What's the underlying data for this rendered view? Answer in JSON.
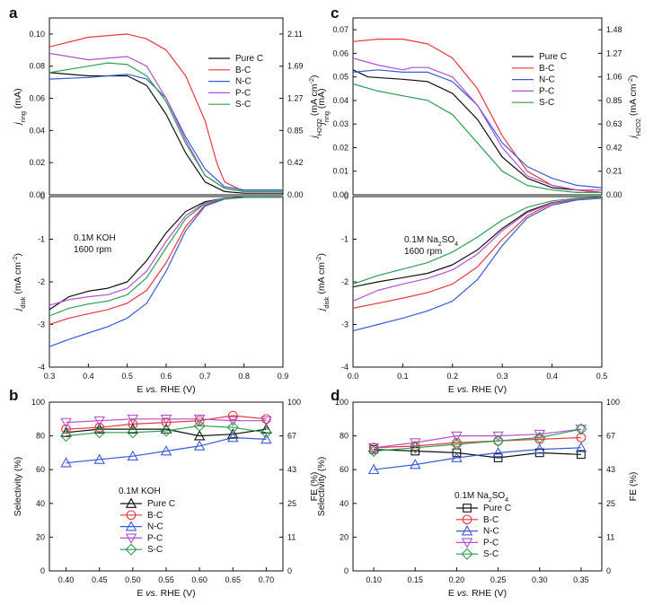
{
  "figure": {
    "panel_labels": [
      "a",
      "b",
      "c",
      "d"
    ]
  },
  "chart_data": [
    {
      "id": "a_top",
      "type": "line",
      "panel": "a",
      "xlim": [
        0.3,
        0.9
      ],
      "ylim": [
        0,
        0.11
      ],
      "yticks": [
        "0.00",
        "0.02",
        "0.04",
        "0.06",
        "0.08",
        "0.10"
      ],
      "ylabel": "j_ring (mA)",
      "right_yticks": [
        "0.00",
        "0.42",
        "0.85",
        "1.27",
        "1.69",
        "2.11"
      ],
      "right_ylabel": "j_H2O2 (mA cm^-2)",
      "legend": [
        "Pure C",
        "B-C",
        "N-C",
        "P-C",
        "S-C"
      ],
      "series": [
        {
          "name": "Pure C",
          "color": "#111111",
          "x": [
            0.3,
            0.4,
            0.5,
            0.55,
            0.6,
            0.65,
            0.7,
            0.75,
            0.8,
            0.9
          ],
          "y": [
            0.076,
            0.074,
            0.074,
            0.068,
            0.05,
            0.026,
            0.008,
            0.002,
            0.001,
            0.001
          ]
        },
        {
          "name": "B-C",
          "color": "#e8383d",
          "x": [
            0.3,
            0.4,
            0.5,
            0.55,
            0.6,
            0.65,
            0.7,
            0.73,
            0.75,
            0.8,
            0.9
          ],
          "y": [
            0.092,
            0.098,
            0.1,
            0.097,
            0.09,
            0.074,
            0.046,
            0.02,
            0.008,
            0.002,
            0.002
          ]
        },
        {
          "name": "N-C",
          "color": "#3b5bd6",
          "x": [
            0.3,
            0.4,
            0.5,
            0.55,
            0.6,
            0.65,
            0.7,
            0.75,
            0.8,
            0.9
          ],
          "y": [
            0.072,
            0.073,
            0.075,
            0.072,
            0.06,
            0.036,
            0.016,
            0.005,
            0.003,
            0.003
          ]
        },
        {
          "name": "P-C",
          "color": "#b44fd0",
          "x": [
            0.3,
            0.4,
            0.5,
            0.55,
            0.6,
            0.65,
            0.7,
            0.75,
            0.8,
            0.9
          ],
          "y": [
            0.088,
            0.084,
            0.086,
            0.08,
            0.06,
            0.034,
            0.012,
            0.004,
            0.002,
            0.002
          ]
        },
        {
          "name": "S-C",
          "color": "#2e9e52",
          "x": [
            0.3,
            0.4,
            0.45,
            0.5,
            0.55,
            0.6,
            0.65,
            0.7,
            0.75,
            0.8,
            0.9
          ],
          "y": [
            0.076,
            0.08,
            0.082,
            0.081,
            0.074,
            0.058,
            0.032,
            0.012,
            0.004,
            0.002,
            0.002
          ]
        }
      ]
    },
    {
      "id": "a_bottom",
      "type": "line",
      "panel": "a",
      "xlim": [
        0.3,
        0.9
      ],
      "ylim": [
        -4,
        0
      ],
      "xticks": [
        "0.3",
        "0.4",
        "0.5",
        "0.6",
        "0.7",
        "0.8",
        "0.9"
      ],
      "yticks": [
        "-4",
        "-3",
        "-2",
        "-1",
        "0"
      ],
      "xlabel": "E vs. RHE (V)",
      "ylabel": "j_disk (mA cm^-2)",
      "annotation": [
        "0.1M KOH",
        "1600 rpm"
      ],
      "series": [
        {
          "name": "Pure C",
          "color": "#111111",
          "x": [
            0.3,
            0.35,
            0.4,
            0.45,
            0.5,
            0.55,
            0.6,
            0.65,
            0.7,
            0.75,
            0.8,
            0.9
          ],
          "y": [
            -2.65,
            -2.35,
            -2.22,
            -2.15,
            -2.0,
            -1.5,
            -0.85,
            -0.35,
            -0.12,
            -0.04,
            -0.02,
            -0.01
          ]
        },
        {
          "name": "B-C",
          "color": "#e8383d",
          "x": [
            0.3,
            0.35,
            0.4,
            0.45,
            0.5,
            0.55,
            0.6,
            0.65,
            0.7,
            0.75,
            0.8,
            0.9
          ],
          "y": [
            -3.0,
            -2.85,
            -2.75,
            -2.65,
            -2.5,
            -2.2,
            -1.55,
            -0.7,
            -0.2,
            -0.05,
            -0.02,
            -0.01
          ]
        },
        {
          "name": "N-C",
          "color": "#3b5bd6",
          "x": [
            0.3,
            0.35,
            0.4,
            0.45,
            0.5,
            0.55,
            0.6,
            0.65,
            0.7,
            0.75,
            0.8,
            0.9
          ],
          "y": [
            -3.52,
            -3.35,
            -3.2,
            -3.05,
            -2.85,
            -2.5,
            -1.75,
            -0.8,
            -0.22,
            -0.06,
            -0.02,
            -0.01
          ]
        },
        {
          "name": "P-C",
          "color": "#b44fd0",
          "x": [
            0.3,
            0.35,
            0.4,
            0.45,
            0.5,
            0.55,
            0.6,
            0.65,
            0.7,
            0.75,
            0.8,
            0.9
          ],
          "y": [
            -2.55,
            -2.42,
            -2.35,
            -2.3,
            -2.15,
            -1.75,
            -1.05,
            -0.45,
            -0.14,
            -0.04,
            -0.02,
            -0.01
          ]
        },
        {
          "name": "S-C",
          "color": "#2e9e52",
          "x": [
            0.3,
            0.35,
            0.4,
            0.45,
            0.5,
            0.55,
            0.6,
            0.65,
            0.7,
            0.75,
            0.8,
            0.9
          ],
          "y": [
            -2.8,
            -2.62,
            -2.52,
            -2.45,
            -2.3,
            -1.9,
            -1.2,
            -0.52,
            -0.16,
            -0.05,
            -0.02,
            -0.01
          ]
        }
      ]
    },
    {
      "id": "b",
      "type": "line",
      "panel": "b",
      "xlim": [
        0.375,
        0.725
      ],
      "ylim": [
        0,
        100
      ],
      "xticks": [
        "0.40",
        "0.45",
        "0.50",
        "0.55",
        "0.60",
        "0.65",
        "0.70"
      ],
      "yticks": [
        "0",
        "20",
        "40",
        "60",
        "80",
        "100"
      ],
      "right_yticks": [
        "0",
        "11",
        "25",
        "43",
        "67",
        "100"
      ],
      "xlabel": "E vs. RHE (V)",
      "ylabel": "Selectivity (%)",
      "right_ylabel": "FE (%)",
      "legend_title": "0.1M KOH",
      "legend": [
        "Pure C",
        "B-C",
        "N-C",
        "P-C",
        "S-C"
      ],
      "series": [
        {
          "name": "Pure C",
          "marker": "triangle-up",
          "color": "#111111",
          "x": [
            0.4,
            0.45,
            0.5,
            0.55,
            0.6,
            0.65,
            0.7
          ],
          "y": [
            82,
            84,
            84,
            84,
            80,
            81,
            84
          ]
        },
        {
          "name": "B-C",
          "marker": "circle",
          "color": "#e8383d",
          "x": [
            0.4,
            0.45,
            0.5,
            0.55,
            0.6,
            0.65,
            0.7
          ],
          "y": [
            84,
            85,
            87,
            88,
            89,
            92,
            90
          ]
        },
        {
          "name": "N-C",
          "marker": "triangle-up",
          "color": "#3b5bd6",
          "x": [
            0.4,
            0.45,
            0.5,
            0.55,
            0.6,
            0.65,
            0.7
          ],
          "y": [
            64,
            66,
            68,
            71,
            74,
            79,
            78
          ]
        },
        {
          "name": "P-C",
          "marker": "triangle-down",
          "color": "#b44fd0",
          "x": [
            0.4,
            0.45,
            0.5,
            0.55,
            0.6,
            0.65,
            0.7
          ],
          "y": [
            88,
            89,
            90,
            90,
            90,
            89,
            89
          ]
        },
        {
          "name": "S-C",
          "marker": "diamond",
          "color": "#2e9e52",
          "x": [
            0.4,
            0.45,
            0.5,
            0.55,
            0.6,
            0.65,
            0.7
          ],
          "y": [
            80,
            82,
            82,
            83,
            86,
            85,
            82
          ]
        }
      ]
    },
    {
      "id": "c_top",
      "type": "line",
      "panel": "c",
      "xlim": [
        0.0,
        0.5
      ],
      "ylim": [
        0,
        0.075
      ],
      "yticks": [
        "0.00",
        "0.01",
        "0.02",
        "0.03",
        "0.04",
        "0.05",
        "0.06",
        "0.07"
      ],
      "ylabel": "j_ring (mA)",
      "right_yticks": [
        "0.00",
        "0.21",
        "0.42",
        "0.63",
        "0.85",
        "1.06",
        "1.27",
        "1.48"
      ],
      "right_ylabel": "j_H2O2 (mA cm^-2)",
      "legend": [
        "Pure C",
        "B-C",
        "N-C",
        "P-C",
        "S-C"
      ],
      "series": [
        {
          "name": "Pure C",
          "color": "#111111",
          "x": [
            0.0,
            0.03,
            0.1,
            0.15,
            0.2,
            0.25,
            0.3,
            0.35,
            0.4,
            0.45,
            0.5
          ],
          "y": [
            0.053,
            0.05,
            0.049,
            0.048,
            0.043,
            0.032,
            0.016,
            0.007,
            0.003,
            0.002,
            0.001
          ]
        },
        {
          "name": "B-C",
          "color": "#e8383d",
          "x": [
            0.0,
            0.05,
            0.1,
            0.15,
            0.2,
            0.25,
            0.3,
            0.35,
            0.4,
            0.45,
            0.5
          ],
          "y": [
            0.065,
            0.066,
            0.066,
            0.064,
            0.058,
            0.045,
            0.025,
            0.01,
            0.004,
            0.002,
            0.001
          ]
        },
        {
          "name": "N-C",
          "color": "#3b5bd6",
          "x": [
            0.0,
            0.05,
            0.1,
            0.15,
            0.2,
            0.25,
            0.3,
            0.35,
            0.4,
            0.45,
            0.5
          ],
          "y": [
            0.052,
            0.053,
            0.052,
            0.052,
            0.048,
            0.038,
            0.022,
            0.012,
            0.007,
            0.004,
            0.003
          ]
        },
        {
          "name": "P-C",
          "color": "#b44fd0",
          "x": [
            0.0,
            0.05,
            0.1,
            0.12,
            0.15,
            0.2,
            0.25,
            0.3,
            0.35,
            0.4,
            0.45,
            0.5
          ],
          "y": [
            0.058,
            0.055,
            0.053,
            0.054,
            0.054,
            0.05,
            0.038,
            0.02,
            0.008,
            0.004,
            0.002,
            0.002
          ]
        },
        {
          "name": "S-C",
          "color": "#2e9e52",
          "x": [
            0.0,
            0.05,
            0.1,
            0.15,
            0.2,
            0.25,
            0.3,
            0.35,
            0.4,
            0.45,
            0.5
          ],
          "y": [
            0.047,
            0.044,
            0.042,
            0.04,
            0.034,
            0.022,
            0.01,
            0.004,
            0.002,
            0.001,
            0.001
          ]
        }
      ]
    },
    {
      "id": "c_bottom",
      "type": "line",
      "panel": "c",
      "xlim": [
        0.0,
        0.5
      ],
      "ylim": [
        -4,
        0
      ],
      "xticks": [
        "0.0",
        "0.1",
        "0.2",
        "0.3",
        "0.4",
        "0.5"
      ],
      "yticks": [
        "-4",
        "-3",
        "-2",
        "-1",
        "0"
      ],
      "xlabel": "E vs. RHE (V)",
      "ylabel": "j_disk (mA cm^-2)",
      "annotation": [
        "0.1M Na2SO4",
        "1600 rpm"
      ],
      "series": [
        {
          "name": "Pure C",
          "color": "#111111",
          "x": [
            0.0,
            0.05,
            0.1,
            0.15,
            0.2,
            0.25,
            0.3,
            0.35,
            0.4,
            0.45,
            0.5
          ],
          "y": [
            -2.12,
            -2.0,
            -1.9,
            -1.8,
            -1.6,
            -1.25,
            -0.75,
            -0.35,
            -0.14,
            -0.06,
            -0.03
          ]
        },
        {
          "name": "B-C",
          "color": "#e8383d",
          "x": [
            0.0,
            0.05,
            0.1,
            0.15,
            0.2,
            0.25,
            0.3,
            0.35,
            0.4,
            0.45,
            0.5
          ],
          "y": [
            -2.62,
            -2.5,
            -2.38,
            -2.25,
            -2.05,
            -1.65,
            -1.0,
            -0.45,
            -0.16,
            -0.07,
            -0.03
          ]
        },
        {
          "name": "N-C",
          "color": "#3b5bd6",
          "x": [
            0.0,
            0.05,
            0.1,
            0.15,
            0.2,
            0.25,
            0.3,
            0.35,
            0.4,
            0.45,
            0.5
          ],
          "y": [
            -3.15,
            -3.0,
            -2.85,
            -2.68,
            -2.45,
            -1.95,
            -1.15,
            -0.5,
            -0.2,
            -0.08,
            -0.04
          ]
        },
        {
          "name": "P-C",
          "color": "#b44fd0",
          "x": [
            0.0,
            0.05,
            0.1,
            0.15,
            0.2,
            0.25,
            0.3,
            0.35,
            0.4,
            0.45,
            0.5
          ],
          "y": [
            -2.45,
            -2.2,
            -2.05,
            -1.92,
            -1.72,
            -1.35,
            -0.8,
            -0.38,
            -0.15,
            -0.06,
            -0.03
          ]
        },
        {
          "name": "S-C",
          "color": "#2e9e52",
          "x": [
            0.0,
            0.05,
            0.1,
            0.15,
            0.2,
            0.25,
            0.3,
            0.35,
            0.4,
            0.45,
            0.5
          ],
          "y": [
            -2.05,
            -1.85,
            -1.7,
            -1.55,
            -1.3,
            -0.95,
            -0.55,
            -0.25,
            -0.1,
            -0.04,
            -0.02
          ]
        }
      ]
    },
    {
      "id": "d",
      "type": "line",
      "panel": "d",
      "xlim": [
        0.075,
        0.375
      ],
      "ylim": [
        0,
        100
      ],
      "xticks": [
        "0.10",
        "0.15",
        "0.20",
        "0.25",
        "0.30",
        "0.35"
      ],
      "yticks": [
        "0",
        "20",
        "40",
        "60",
        "80",
        "100"
      ],
      "right_yticks": [
        "0",
        "11",
        "25",
        "43",
        "67",
        "100"
      ],
      "xlabel": "E vs. RHE (V)",
      "ylabel": "Selectivity (%)",
      "right_ylabel": "FE (%)",
      "legend_title": "0.1M Na2SO4",
      "legend": [
        "Pure C",
        "B-C",
        "N-C",
        "P-C",
        "S-C"
      ],
      "series": [
        {
          "name": "Pure C",
          "marker": "square",
          "color": "#111111",
          "x": [
            0.1,
            0.15,
            0.2,
            0.25,
            0.3,
            0.35
          ],
          "y": [
            72,
            71,
            70,
            67,
            70,
            69
          ]
        },
        {
          "name": "B-C",
          "marker": "circle",
          "color": "#e8383d",
          "x": [
            0.1,
            0.15,
            0.2,
            0.25,
            0.3,
            0.35
          ],
          "y": [
            73,
            74,
            76,
            77,
            78,
            79
          ]
        },
        {
          "name": "N-C",
          "marker": "triangle-up",
          "color": "#3b5bd6",
          "x": [
            0.1,
            0.15,
            0.2,
            0.25,
            0.3,
            0.35
          ],
          "y": [
            60,
            63,
            67,
            70,
            72,
            73
          ]
        },
        {
          "name": "P-C",
          "marker": "triangle-down",
          "color": "#b44fd0",
          "x": [
            0.1,
            0.15,
            0.2,
            0.25,
            0.3,
            0.35
          ],
          "y": [
            73,
            76,
            80,
            80,
            81,
            84
          ]
        },
        {
          "name": "S-C",
          "marker": "diamond",
          "color": "#2e9e52",
          "x": [
            0.1,
            0.15,
            0.2,
            0.25,
            0.3,
            0.35
          ],
          "y": [
            71,
            73,
            75,
            77,
            79,
            84
          ]
        }
      ]
    }
  ]
}
